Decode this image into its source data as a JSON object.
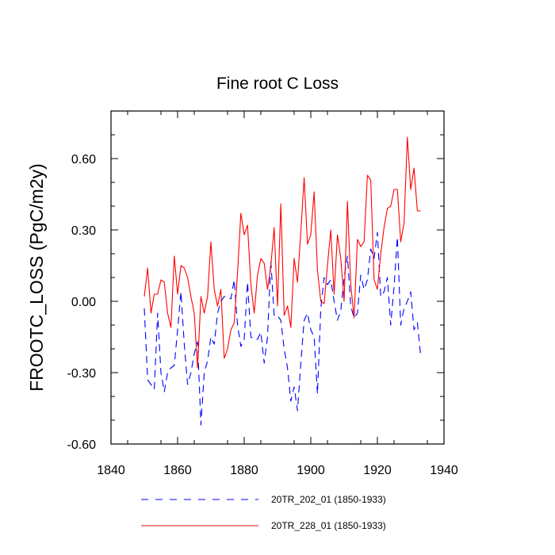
{
  "chart_data": {
    "type": "line",
    "title": "Fine root C Loss",
    "xlabel": "",
    "ylabel": "FROOTC_LOSS  (PgC/m2y)",
    "xlim": [
      1840,
      1940
    ],
    "ylim": [
      -0.6,
      0.8
    ],
    "xticks": [
      1840,
      1860,
      1880,
      1900,
      1920,
      1940
    ],
    "xtick_labels": [
      "1840",
      "1860",
      "1880",
      "1900",
      "1920",
      "1940"
    ],
    "yticks": [
      -0.6,
      -0.3,
      0.0,
      0.3,
      0.6
    ],
    "ytick_labels": [
      "-0.60",
      "-0.30",
      "0.00",
      "0.30",
      "0.60"
    ],
    "grid": false,
    "legend_position": "bottom",
    "x": [
      1850,
      1851,
      1852,
      1853,
      1854,
      1855,
      1856,
      1857,
      1858,
      1859,
      1860,
      1861,
      1862,
      1863,
      1864,
      1865,
      1866,
      1867,
      1868,
      1869,
      1870,
      1871,
      1872,
      1873,
      1874,
      1875,
      1876,
      1877,
      1878,
      1879,
      1880,
      1881,
      1882,
      1883,
      1884,
      1885,
      1886,
      1887,
      1888,
      1889,
      1890,
      1891,
      1892,
      1893,
      1894,
      1895,
      1896,
      1897,
      1898,
      1899,
      1900,
      1901,
      1902,
      1903,
      1904,
      1905,
      1906,
      1907,
      1908,
      1909,
      1910,
      1911,
      1912,
      1913,
      1914,
      1915,
      1916,
      1917,
      1918,
      1919,
      1920,
      1921,
      1922,
      1923,
      1924,
      1925,
      1926,
      1927,
      1928,
      1929,
      1930,
      1931,
      1932,
      1933
    ],
    "series": [
      {
        "name": "20TR_202_01 (1850-1933)",
        "color": "#0000ff",
        "dash": "dashed",
        "values": [
          -0.03,
          -0.33,
          -0.35,
          -0.37,
          -0.05,
          -0.3,
          -0.38,
          -0.3,
          -0.28,
          -0.27,
          -0.12,
          0.04,
          -0.18,
          -0.35,
          -0.3,
          -0.22,
          -0.17,
          -0.52,
          -0.3,
          -0.25,
          -0.15,
          -0.18,
          -0.05,
          0.0,
          0.02,
          0.02,
          0.01,
          0.09,
          -0.1,
          -0.19,
          -0.16,
          0.08,
          -0.15,
          -0.16,
          -0.16,
          -0.13,
          -0.26,
          -0.15,
          0.17,
          -0.06,
          -0.06,
          -0.08,
          -0.2,
          -0.28,
          -0.42,
          -0.36,
          -0.46,
          -0.26,
          -0.08,
          -0.05,
          -0.12,
          -0.15,
          -0.39,
          -0.03,
          0.1,
          0.07,
          0.09,
          0.0,
          -0.08,
          -0.04,
          0.1,
          0.19,
          -0.02,
          -0.07,
          -0.05,
          0.11,
          0.05,
          0.09,
          0.22,
          0.18,
          0.29,
          0.02,
          0.04,
          0.1,
          -0.1,
          0.06,
          0.27,
          -0.1,
          -0.03,
          0.0,
          0.04,
          -0.12,
          -0.09,
          -0.23
        ]
      },
      {
        "name": "20TR_228_01 (1850-1933)",
        "color": "#ff0000",
        "dash": "solid",
        "values": [
          0.02,
          0.14,
          -0.05,
          0.03,
          0.03,
          0.09,
          0.08,
          -0.05,
          -0.11,
          0.19,
          0.03,
          0.15,
          0.14,
          0.1,
          0.02,
          -0.05,
          -0.28,
          0.02,
          -0.05,
          0.02,
          0.25,
          0.05,
          -0.02,
          0.05,
          -0.24,
          -0.2,
          -0.12,
          -0.09,
          0.12,
          0.37,
          0.28,
          0.32,
          0.07,
          -0.05,
          0.11,
          0.18,
          0.16,
          0.05,
          0.15,
          0.31,
          -0.02,
          0.41,
          -0.06,
          -0.02,
          -0.11,
          0.18,
          0.08,
          0.29,
          0.52,
          0.24,
          0.28,
          0.46,
          0.13,
          0.0,
          -0.01,
          0.15,
          0.3,
          0.03,
          0.28,
          0.18,
          0.0,
          0.42,
          0.07,
          -0.07,
          0.26,
          0.23,
          0.25,
          0.53,
          0.51,
          0.09,
          0.05,
          0.2,
          0.31,
          0.39,
          0.4,
          0.47,
          0.47,
          0.25,
          0.33,
          0.69,
          0.47,
          0.56,
          0.38,
          0.38
        ]
      }
    ]
  }
}
